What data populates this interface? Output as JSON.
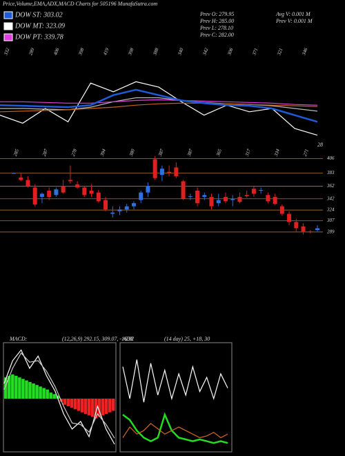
{
  "header": {
    "title": "Price,Volume,EMA,ADX,MACD Charts for 505196  MunafaSutra.com"
  },
  "legend": [
    {
      "label": "DOW ST: 303.02",
      "color": "#1e5bd8"
    },
    {
      "label": "DOW MT: 323.09",
      "color": "#ffffff"
    },
    {
      "label": "DOW PT: 339.78",
      "color": "#e040e0"
    }
  ],
  "info": [
    "Prev  O: 279.95",
    "Prev  H: 285.00",
    "Prev  L: 278.10",
    "Prev  C: 282.00"
  ],
  "info2": [
    "Avg V: 0.001 M",
    "Prev  V: 0.001 M"
  ],
  "chart_data": [
    {
      "type": "line",
      "top_labels": [
        "332",
        "289",
        "406",
        "398",
        "419",
        "398",
        "388",
        "340",
        "342",
        "306",
        "371",
        "321",
        "346"
      ],
      "annotation": "28",
      "ylim": [
        280,
        430
      ],
      "series": [
        {
          "color": "#ffffff",
          "values": [
            330,
            318,
            340,
            320,
            378,
            365,
            380,
            372,
            350,
            330,
            345,
            335,
            340,
            310,
            300
          ]
        },
        {
          "color": "#bbbbbb",
          "values": [
            340,
            340,
            339,
            338,
            342,
            350,
            356,
            356,
            352,
            349,
            347,
            346,
            344,
            340,
            336
          ]
        },
        {
          "color": "#c86414",
          "values": [
            335,
            336,
            337,
            338,
            340,
            342,
            345,
            347,
            348,
            348,
            347,
            346,
            345,
            344,
            343
          ]
        },
        {
          "color": "#e040e0",
          "values": [
            350,
            350,
            349,
            348,
            348,
            350,
            352,
            353,
            352,
            351,
            350,
            349,
            348,
            346,
            345
          ]
        },
        {
          "color": "#1e5bd8",
          "values": [
            345,
            344,
            343,
            342,
            345,
            360,
            368,
            360,
            352,
            348,
            345,
            344,
            340,
            330,
            320
          ]
        }
      ]
    },
    {
      "type": "candlestick",
      "high_labels": [
        "285",
        "287",
        "278",
        "394",
        "380",
        "387",
        "387",
        "365",
        "317",
        "334",
        "271"
      ],
      "up_color": "#2f6fe0",
      "down_color": "#e02020",
      "grid": true,
      "ylim": [
        280,
        410
      ],
      "yticks": [
        406,
        383,
        362,
        342,
        324,
        307,
        289
      ],
      "open": [
        383,
        376,
        372,
        360,
        345,
        355,
        348,
        362,
        372,
        365,
        360,
        355,
        352,
        340,
        318,
        322,
        325,
        330,
        340,
        352,
        405,
        380,
        385,
        392,
        370,
        345,
        355,
        345,
        345,
        335,
        345,
        340,
        345,
        348,
        358,
        355,
        348,
        345,
        330,
        318,
        305,
        298,
        290,
        292
      ],
      "high": [
        384,
        383,
        378,
        365,
        352,
        360,
        360,
        372,
        395,
        370,
        362,
        365,
        356,
        345,
        330,
        330,
        334,
        338,
        355,
        368,
        410,
        395,
        395,
        400,
        372,
        350,
        360,
        352,
        350,
        350,
        352,
        348,
        352,
        355,
        362,
        360,
        352,
        350,
        333,
        322,
        310,
        303,
        292,
        300
      ],
      "low": [
        382,
        370,
        360,
        330,
        335,
        340,
        345,
        350,
        366,
        358,
        345,
        345,
        336,
        322,
        312,
        316,
        320,
        325,
        335,
        345,
        372,
        370,
        378,
        375,
        340,
        340,
        330,
        340,
        325,
        330,
        335,
        330,
        335,
        344,
        345,
        350,
        335,
        332,
        315,
        300,
        290,
        285,
        287,
        290
      ],
      "close": [
        383,
        372,
        362,
        333,
        350,
        345,
        357,
        352,
        370,
        360,
        348,
        350,
        338,
        325,
        320,
        325,
        330,
        335,
        352,
        362,
        375,
        390,
        383,
        378,
        342,
        346,
        335,
        348,
        330,
        340,
        338,
        342,
        337,
        346,
        350,
        356,
        338,
        334,
        318,
        305,
        295,
        290,
        289,
        295
      ]
    },
    {
      "type": "macd",
      "label": "MACD:",
      "params": "(12,26,9) 292.15, 309.07, -16.92",
      "ylim": [
        -35,
        35
      ],
      "up_color": "#22dd22",
      "down_color": "#ee2222",
      "histogram": [
        14,
        15,
        16,
        15,
        14,
        13,
        12,
        11,
        10,
        9,
        8,
        7,
        6,
        4,
        3,
        2,
        -2,
        -4,
        -5,
        -6,
        -7,
        -8,
        -9,
        -10,
        -11,
        -12,
        -13,
        -12,
        -11,
        -10,
        -9,
        -8
      ],
      "series": [
        {
          "color": "#ffffff",
          "values": [
            10,
            25,
            32,
            20,
            28,
            15,
            5,
            -10,
            -20,
            -15,
            -25,
            -5,
            -20,
            -30
          ]
        },
        {
          "color": "#cccccc",
          "values": [
            6,
            20,
            30,
            24,
            25,
            18,
            8,
            -5,
            -16,
            -17,
            -22,
            -10,
            -17,
            -26
          ]
        }
      ]
    },
    {
      "type": "adx",
      "label": "ADX",
      "params": "(14 day) 25, +18, 30",
      "ylim": [
        0,
        60
      ],
      "series": [
        {
          "color": "#ffffff",
          "values": [
            48,
            30,
            52,
            28,
            50,
            32,
            46,
            30,
            44,
            32,
            48,
            34,
            42,
            30,
            44,
            36
          ]
        },
        {
          "color": "#22dd22",
          "values": [
            21,
            18,
            12,
            8,
            6,
            8,
            21,
            12,
            8,
            7,
            6,
            7,
            6,
            5,
            6,
            5
          ]
        },
        {
          "color": "#d2691e",
          "values": [
            8,
            14,
            10,
            12,
            16,
            13,
            10,
            12,
            14,
            12,
            10,
            8,
            9,
            11,
            8,
            10
          ]
        }
      ]
    }
  ]
}
